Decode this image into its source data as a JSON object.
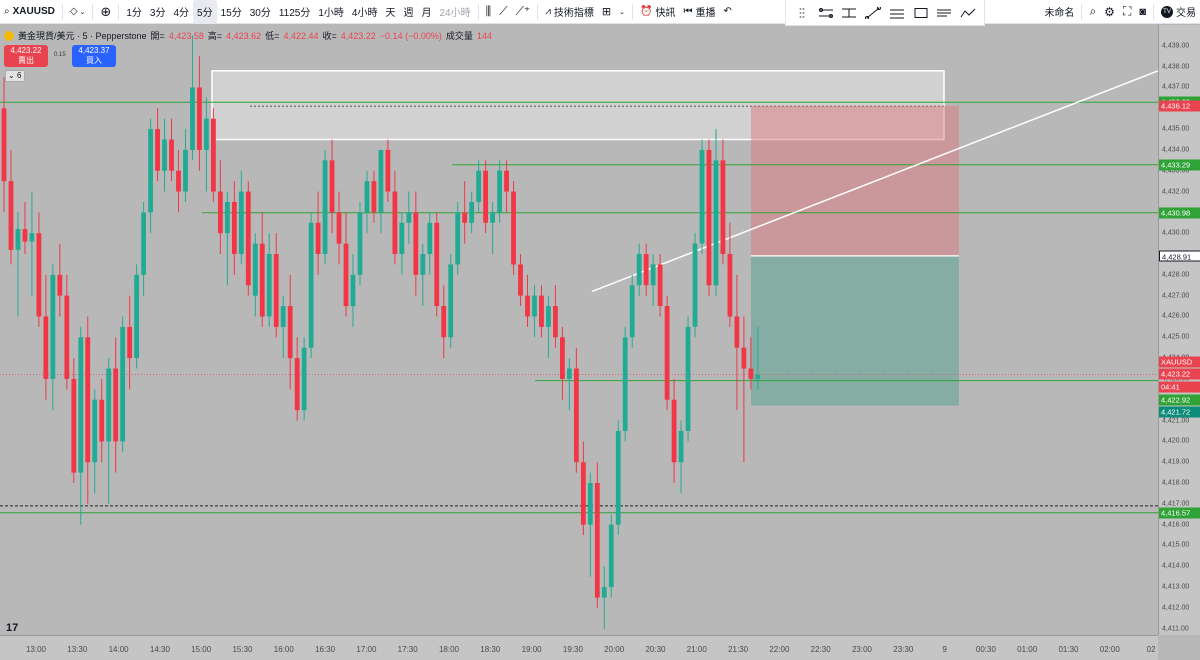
{
  "toolbar": {
    "symbol": "XAUUSD",
    "timeframes": [
      "1分",
      "3分",
      "4分",
      "5分",
      "15分",
      "30分",
      "1125分",
      "1小時",
      "4小時",
      "天",
      "週",
      "月"
    ],
    "active_timeframe": "5分",
    "range_24h": "24小時",
    "indicators": "技術指標",
    "alert": "快訊",
    "replay": "重播",
    "layout_name": "未命名",
    "trade": "交易"
  },
  "legend": {
    "title": "黃金現貨/美元 · 5 · Pepperstone",
    "open_label": "開=",
    "open": "4,423.58",
    "high_label": "高=",
    "high": "4,423.62",
    "low_label": "低=",
    "low": "4,422.44",
    "close_label": "收=",
    "close": "4,423.22",
    "change": "−0.14 (−0.00%)",
    "volume_label": "成交量",
    "volume": "144"
  },
  "trade_buttons": {
    "sell_price": "4,423.22",
    "sell_label": "賣出",
    "spread": "0.15",
    "buy_price": "4,423.37",
    "buy_label": "買入"
  },
  "indicator_count": "6",
  "price_axis": {
    "ticks": [
      "4,439.00",
      "4,438.00",
      "4,437.00",
      "4,436.00",
      "4,435.00",
      "4,434.00",
      "4,433.00",
      "4,432.00",
      "4,431.00",
      "4,430.00",
      "4,429.00",
      "4,428.00",
      "4,427.00",
      "4,426.00",
      "4,425.00",
      "4,424.00",
      "4,423.00",
      "4,422.00",
      "4,421.00",
      "4,420.00",
      "4,419.00",
      "4,418.00",
      "4,417.00",
      "4,416.00",
      "4,415.00",
      "4,414.00",
      "4,413.00",
      "4,412.00",
      "4,411.00"
    ],
    "labels": [
      {
        "text": "4,436.29",
        "color": "#2fa336",
        "price": 4436.29
      },
      {
        "text": "4,436.12",
        "color": "#e8434f",
        "price": 4436.12
      },
      {
        "text": "4,433.29",
        "color": "#2fa336",
        "price": 4433.29
      },
      {
        "text": "4,430.98",
        "color": "#2fa336",
        "price": 4430.98
      },
      {
        "text": "4,428.92",
        "color": "#6e6e6e",
        "price": 4428.92
      },
      {
        "text": "4,428.91",
        "color": "#ffffff",
        "text_color": "#131722",
        "price": 4428.91
      },
      {
        "text": "XAUUSD",
        "color": "#e8434f",
        "price": 4423.8
      },
      {
        "text": "4,423.22",
        "color": "#e8434f",
        "price": 4423.22
      },
      {
        "text": "04:41",
        "color": "#e8434f",
        "price": 4422.6
      },
      {
        "text": "4,422.92",
        "color": "#2fa336",
        "price": 4422.0
      },
      {
        "text": "4,421.72",
        "color": "#0c8d79",
        "price": 4421.4
      },
      {
        "text": "4,416.57",
        "color": "#2fa336",
        "price": 4416.57
      }
    ]
  },
  "time_axis": [
    "13:00",
    "13:30",
    "14:00",
    "14:30",
    "15:00",
    "15:30",
    "16:00",
    "16:30",
    "17:00",
    "17:30",
    "18:00",
    "18:30",
    "19:00",
    "19:30",
    "20:00",
    "20:30",
    "21:00",
    "21:30",
    "22:00",
    "22:30",
    "23:00",
    "23:30",
    "9",
    "00:30",
    "01:00",
    "01:30",
    "02:00",
    "02"
  ],
  "chart_data": {
    "type": "candlestick",
    "ylim": [
      4410.7,
      4440.0
    ],
    "candles": [
      [
        4436.0,
        4437.5,
        4431.0,
        4432.5
      ],
      [
        4432.5,
        4434.0,
        4428.5,
        4429.2
      ],
      [
        4429.2,
        4431.0,
        4426.0,
        4430.2
      ],
      [
        4430.2,
        4431.5,
        4429.0,
        4429.6
      ],
      [
        4429.6,
        4432.0,
        4427.0,
        4430.0
      ],
      [
        4430.0,
        4431.0,
        4425.5,
        4426.0
      ],
      [
        4426.0,
        4428.0,
        4422.0,
        4423.0
      ],
      [
        4423.0,
        4428.5,
        4421.5,
        4428.0
      ],
      [
        4428.0,
        4429.5,
        4426.0,
        4427.0
      ],
      [
        4427.0,
        4428.0,
        4422.5,
        4423.0
      ],
      [
        4423.0,
        4424.0,
        4418.0,
        4418.5
      ],
      [
        4418.5,
        4425.5,
        4416.0,
        4425.0
      ],
      [
        4425.0,
        4426.0,
        4417.0,
        4419.0
      ],
      [
        4419.0,
        4422.5,
        4417.5,
        4422.0
      ],
      [
        4422.0,
        4423.0,
        4419.0,
        4420.0
      ],
      [
        4420.0,
        4424.0,
        4417.0,
        4423.5
      ],
      [
        4423.5,
        4425.0,
        4418.5,
        4420.0
      ],
      [
        4420.0,
        4426.0,
        4419.5,
        4425.5
      ],
      [
        4425.5,
        4427.0,
        4422.5,
        4424.0
      ],
      [
        4424.0,
        4428.5,
        4423.5,
        4428.0
      ],
      [
        4428.0,
        4431.5,
        4427.0,
        4431.0
      ],
      [
        4431.0,
        4435.5,
        4430.0,
        4435.0
      ],
      [
        4435.0,
        4436.0,
        4432.5,
        4433.0
      ],
      [
        4433.0,
        4435.5,
        4432.0,
        4434.5
      ],
      [
        4434.5,
        4435.5,
        4432.5,
        4433.0
      ],
      [
        4433.0,
        4434.0,
        4431.0,
        4432.0
      ],
      [
        4432.0,
        4435.0,
        4431.5,
        4434.0
      ],
      [
        4434.0,
        4439.5,
        4433.5,
        4437.0
      ],
      [
        4437.0,
        4438.5,
        4433.0,
        4434.0
      ],
      [
        4434.0,
        4436.5,
        4432.0,
        4435.5
      ],
      [
        4435.5,
        4436.0,
        4431.5,
        4432.0
      ],
      [
        4432.0,
        4433.5,
        4429.0,
        4430.0
      ],
      [
        4430.0,
        4432.0,
        4427.5,
        4431.5
      ],
      [
        4431.5,
        4432.5,
        4428.0,
        4429.0
      ],
      [
        4429.0,
        4433.0,
        4428.5,
        4432.0
      ],
      [
        4432.0,
        4432.5,
        4427.0,
        4427.5
      ],
      [
        4427.0,
        4430.0,
        4426.0,
        4429.5
      ],
      [
        4429.5,
        4431.0,
        4425.5,
        4426.0
      ],
      [
        4426.0,
        4430.0,
        4425.5,
        4429.0
      ],
      [
        4429.0,
        4430.0,
        4425.0,
        4425.5
      ],
      [
        4425.5,
        4427.0,
        4424.0,
        4426.5
      ],
      [
        4426.5,
        4428.0,
        4422.5,
        4424.0
      ],
      [
        4424.0,
        4425.0,
        4421.0,
        4421.5
      ],
      [
        4421.5,
        4425.0,
        4421.0,
        4424.5
      ],
      [
        4424.5,
        4431.0,
        4424.0,
        4430.5
      ],
      [
        4430.5,
        4432.0,
        4428.0,
        4429.0
      ],
      [
        4429.0,
        4434.0,
        4428.5,
        4433.5
      ],
      [
        4433.5,
        4434.5,
        4430.0,
        4431.0
      ],
      [
        4431.0,
        4432.0,
        4428.5,
        4429.5
      ],
      [
        4429.5,
        4431.0,
        4426.0,
        4426.5
      ],
      [
        4426.5,
        4429.0,
        4425.5,
        4428.0
      ],
      [
        4428.0,
        4431.5,
        4427.5,
        4431.0
      ],
      [
        4431.0,
        4433.0,
        4430.0,
        4432.5
      ],
      [
        4432.5,
        4433.0,
        4430.5,
        4431.0
      ],
      [
        4431.0,
        4434.0,
        4430.0,
        4434.0
      ],
      [
        4434.0,
        4434.5,
        4431.5,
        4432.0
      ],
      [
        4432.0,
        4433.0,
        4428.5,
        4429.0
      ],
      [
        4429.0,
        4431.0,
        4428.0,
        4430.5
      ],
      [
        4430.5,
        4432.0,
        4429.5,
        4431.0
      ],
      [
        4431.0,
        4432.0,
        4427.0,
        4428.0
      ],
      [
        4428.0,
        4429.5,
        4426.5,
        4429.0
      ],
      [
        4429.0,
        4431.0,
        4428.0,
        4430.5
      ],
      [
        4430.5,
        4431.0,
        4426.0,
        4426.5
      ],
      [
        4426.5,
        4427.5,
        4424.0,
        4425.0
      ],
      [
        4425.0,
        4429.0,
        4424.5,
        4428.5
      ],
      [
        4428.5,
        4431.5,
        4428.0,
        4431.0
      ],
      [
        4431.0,
        4432.5,
        4429.5,
        4430.5
      ],
      [
        4430.5,
        4432.0,
        4430.0,
        4431.5
      ],
      [
        4431.5,
        4433.5,
        4431.0,
        4433.0
      ],
      [
        4433.0,
        4433.5,
        4430.0,
        4430.5
      ],
      [
        4430.5,
        4431.5,
        4429.0,
        4431.0
      ],
      [
        4431.0,
        4433.5,
        4430.5,
        4433.0
      ],
      [
        4433.0,
        4433.5,
        4431.0,
        4432.0
      ],
      [
        4432.0,
        4432.5,
        4428.0,
        4428.5
      ],
      [
        4428.5,
        4429.0,
        4426.5,
        4427.0
      ],
      [
        4427.0,
        4428.0,
        4425.5,
        4426.0
      ],
      [
        4426.0,
        4427.5,
        4425.0,
        4427.0
      ],
      [
        4427.0,
        4427.5,
        4425.0,
        4425.5
      ],
      [
        4425.5,
        4427.0,
        4424.0,
        4426.5
      ],
      [
        4426.5,
        4427.5,
        4424.5,
        4425.0
      ],
      [
        4425.0,
        4425.5,
        4422.0,
        4423.0
      ],
      [
        4423.0,
        4424.0,
        4421.5,
        4423.5
      ],
      [
        4423.5,
        4424.5,
        4418.5,
        4419.0
      ],
      [
        4419.0,
        4420.0,
        4415.5,
        4416.0
      ],
      [
        4416.0,
        4418.5,
        4413.5,
        4418.0
      ],
      [
        4418.0,
        4419.0,
        4412.0,
        4412.5
      ],
      [
        4412.5,
        4414.0,
        4411.0,
        4413.0
      ],
      [
        4413.0,
        4416.5,
        4412.5,
        4416.0
      ],
      [
        4416.0,
        4421.0,
        4415.5,
        4420.5
      ],
      [
        4420.5,
        4425.5,
        4420.0,
        4425.0
      ],
      [
        4425.0,
        4428.0,
        4424.5,
        4427.5
      ],
      [
        4427.5,
        4429.5,
        4427.0,
        4429.0
      ],
      [
        4429.0,
        4429.5,
        4427.0,
        4427.5
      ],
      [
        4427.5,
        4429.0,
        4426.5,
        4428.5
      ],
      [
        4428.5,
        4429.0,
        4426.0,
        4426.5
      ],
      [
        4426.5,
        4427.0,
        4421.5,
        4422.0
      ],
      [
        4422.0,
        4423.0,
        4418.0,
        4419.0
      ],
      [
        4419.0,
        4421.0,
        4417.5,
        4420.5
      ],
      [
        4420.5,
        4426.0,
        4420.0,
        4425.5
      ],
      [
        4425.5,
        4430.0,
        4425.0,
        4429.5
      ],
      [
        4429.5,
        4434.5,
        4429.0,
        4434.0
      ],
      [
        4434.0,
        4434.5,
        4427.0,
        4427.5
      ],
      [
        4427.5,
        4435.0,
        4427.0,
        4433.5
      ],
      [
        4433.5,
        4434.5,
        4428.5,
        4429.0
      ],
      [
        4429.0,
        4430.5,
        4425.5,
        4426.0
      ],
      [
        4426.0,
        4428.0,
        4421.5,
        4424.5
      ],
      [
        4424.5,
        4426.0,
        4419.0,
        4423.5
      ],
      [
        4423.5,
        4425.0,
        4422.5,
        4423.0
      ],
      [
        4423.0,
        4425.5,
        4422.5,
        4423.2
      ]
    ],
    "horizontal_lines": [
      4436.29,
      4433.29,
      4430.98,
      4422.92,
      4416.57
    ],
    "rectangle": {
      "price_top": 4437.8,
      "price_bottom": 4434.5
    },
    "position": {
      "entry": 4428.91,
      "stop": 4436.12,
      "target": 4421.72
    }
  }
}
